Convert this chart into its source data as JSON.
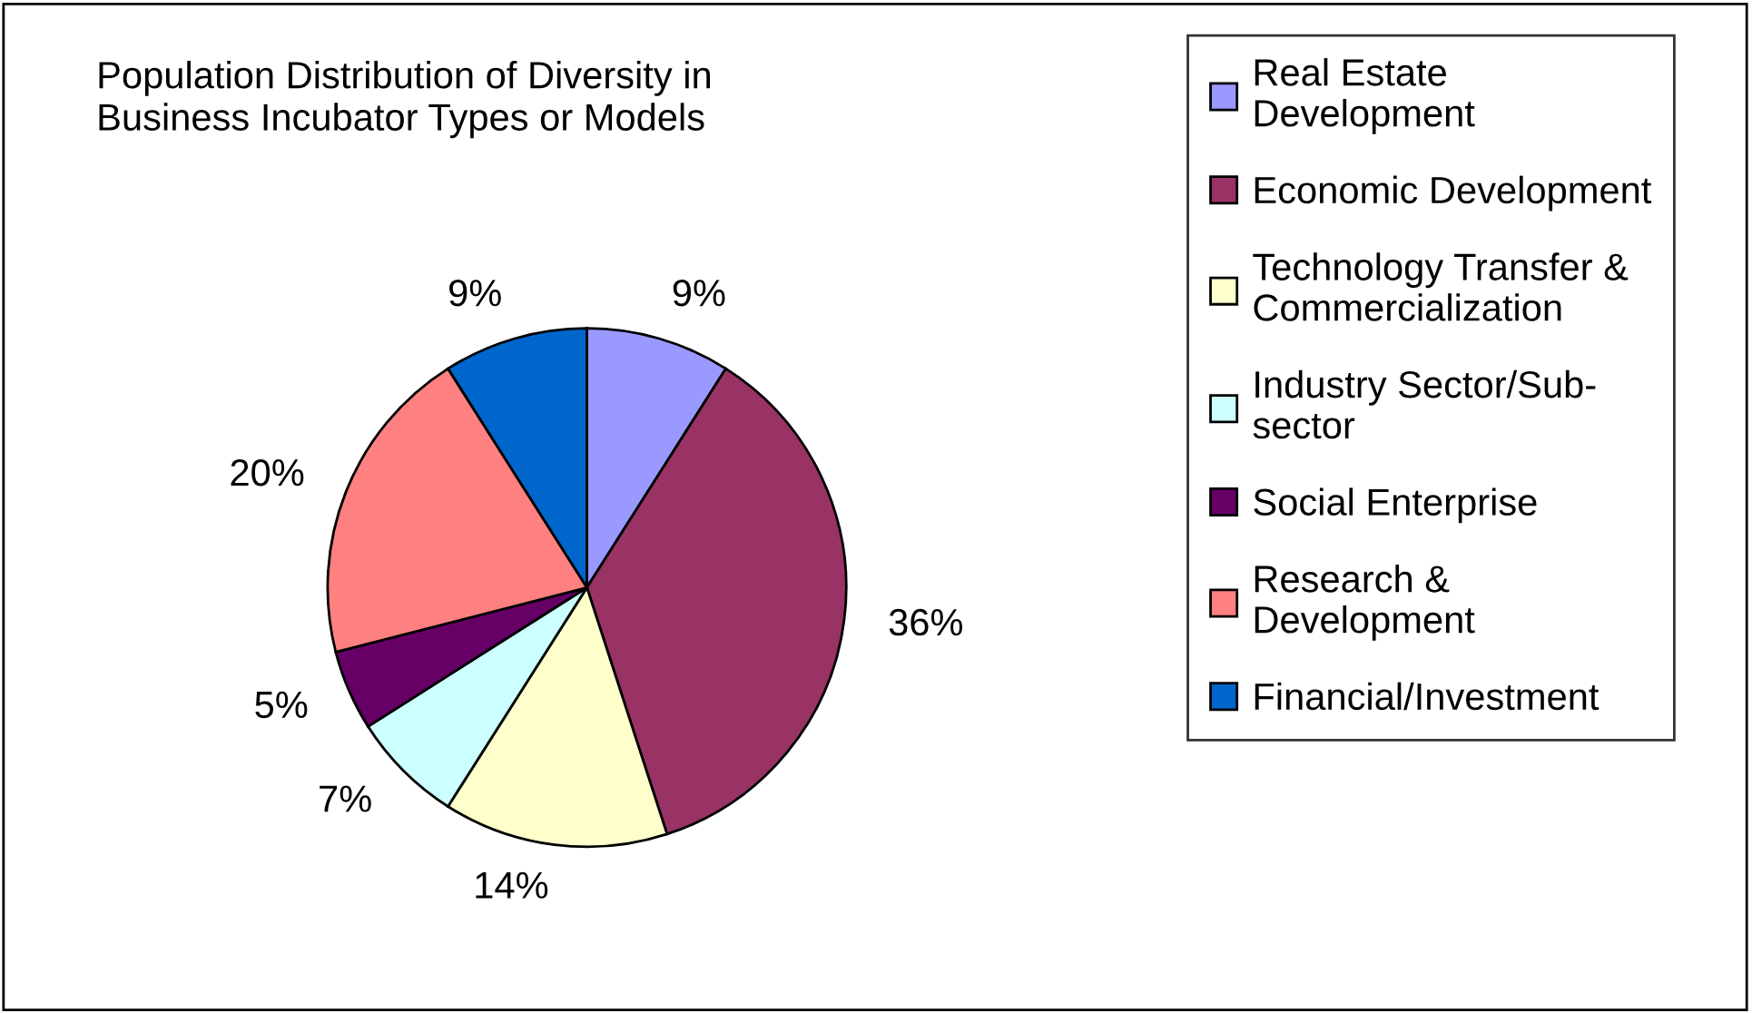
{
  "chart_data": {
    "type": "pie",
    "title": "Population Distribution of Diversity in\nBusiness Incubator Types or Models",
    "categories": [
      "Real Estate\nDevelopment",
      "Economic Development",
      "Technology Transfer &\nCommercialization",
      "Industry Sector/Sub-\nsector",
      "Social Enterprise",
      "Research &\nDevelopment",
      "Financial/Investment"
    ],
    "values": [
      9,
      36,
      14,
      7,
      5,
      20,
      9
    ],
    "value_labels": [
      "9%",
      "36%",
      "14%",
      "7%",
      "5%",
      "20%",
      "9%"
    ],
    "colors": [
      "#9999ff",
      "#993366",
      "#ffffcc",
      "#ccffff",
      "#660066",
      "#ff8080",
      "#0066cc"
    ],
    "legend": "right"
  }
}
